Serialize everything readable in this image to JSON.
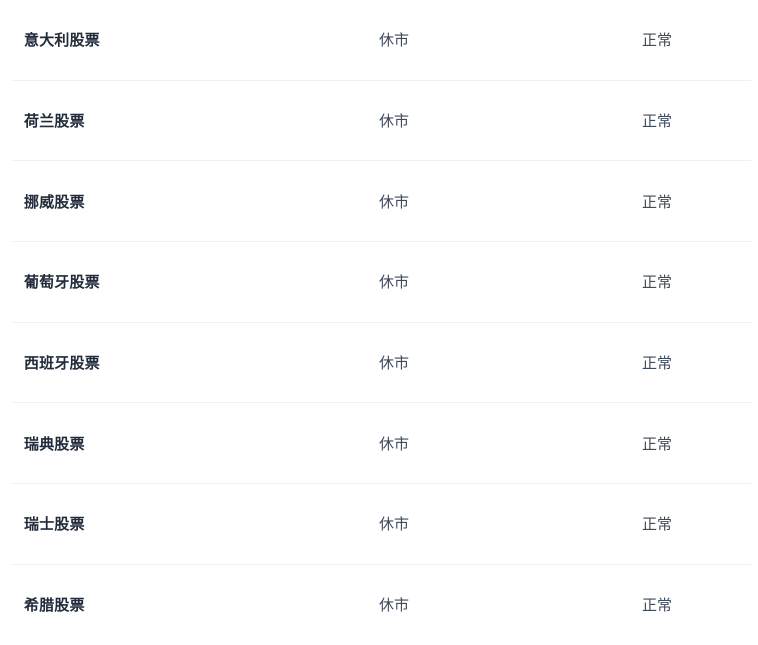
{
  "colors": {
    "background": "#ffffff",
    "market_name_text": "#212b3a",
    "status_text": "#3f4a5b",
    "row_divider": "#f0f0f0"
  },
  "market_status_table": {
    "rows": [
      {
        "market": "意大利股票",
        "trading_status": "休市",
        "system_status": "正常"
      },
      {
        "market": "荷兰股票",
        "trading_status": "休市",
        "system_status": "正常"
      },
      {
        "market": "挪威股票",
        "trading_status": "休市",
        "system_status": "正常"
      },
      {
        "market": "葡萄牙股票",
        "trading_status": "休市",
        "system_status": "正常"
      },
      {
        "market": "西班牙股票",
        "trading_status": "休市",
        "system_status": "正常"
      },
      {
        "market": "瑞典股票",
        "trading_status": "休市",
        "system_status": "正常"
      },
      {
        "market": "瑞士股票",
        "trading_status": "休市",
        "system_status": "正常"
      },
      {
        "market": "希腊股票",
        "trading_status": "休市",
        "system_status": "正常"
      }
    ]
  }
}
